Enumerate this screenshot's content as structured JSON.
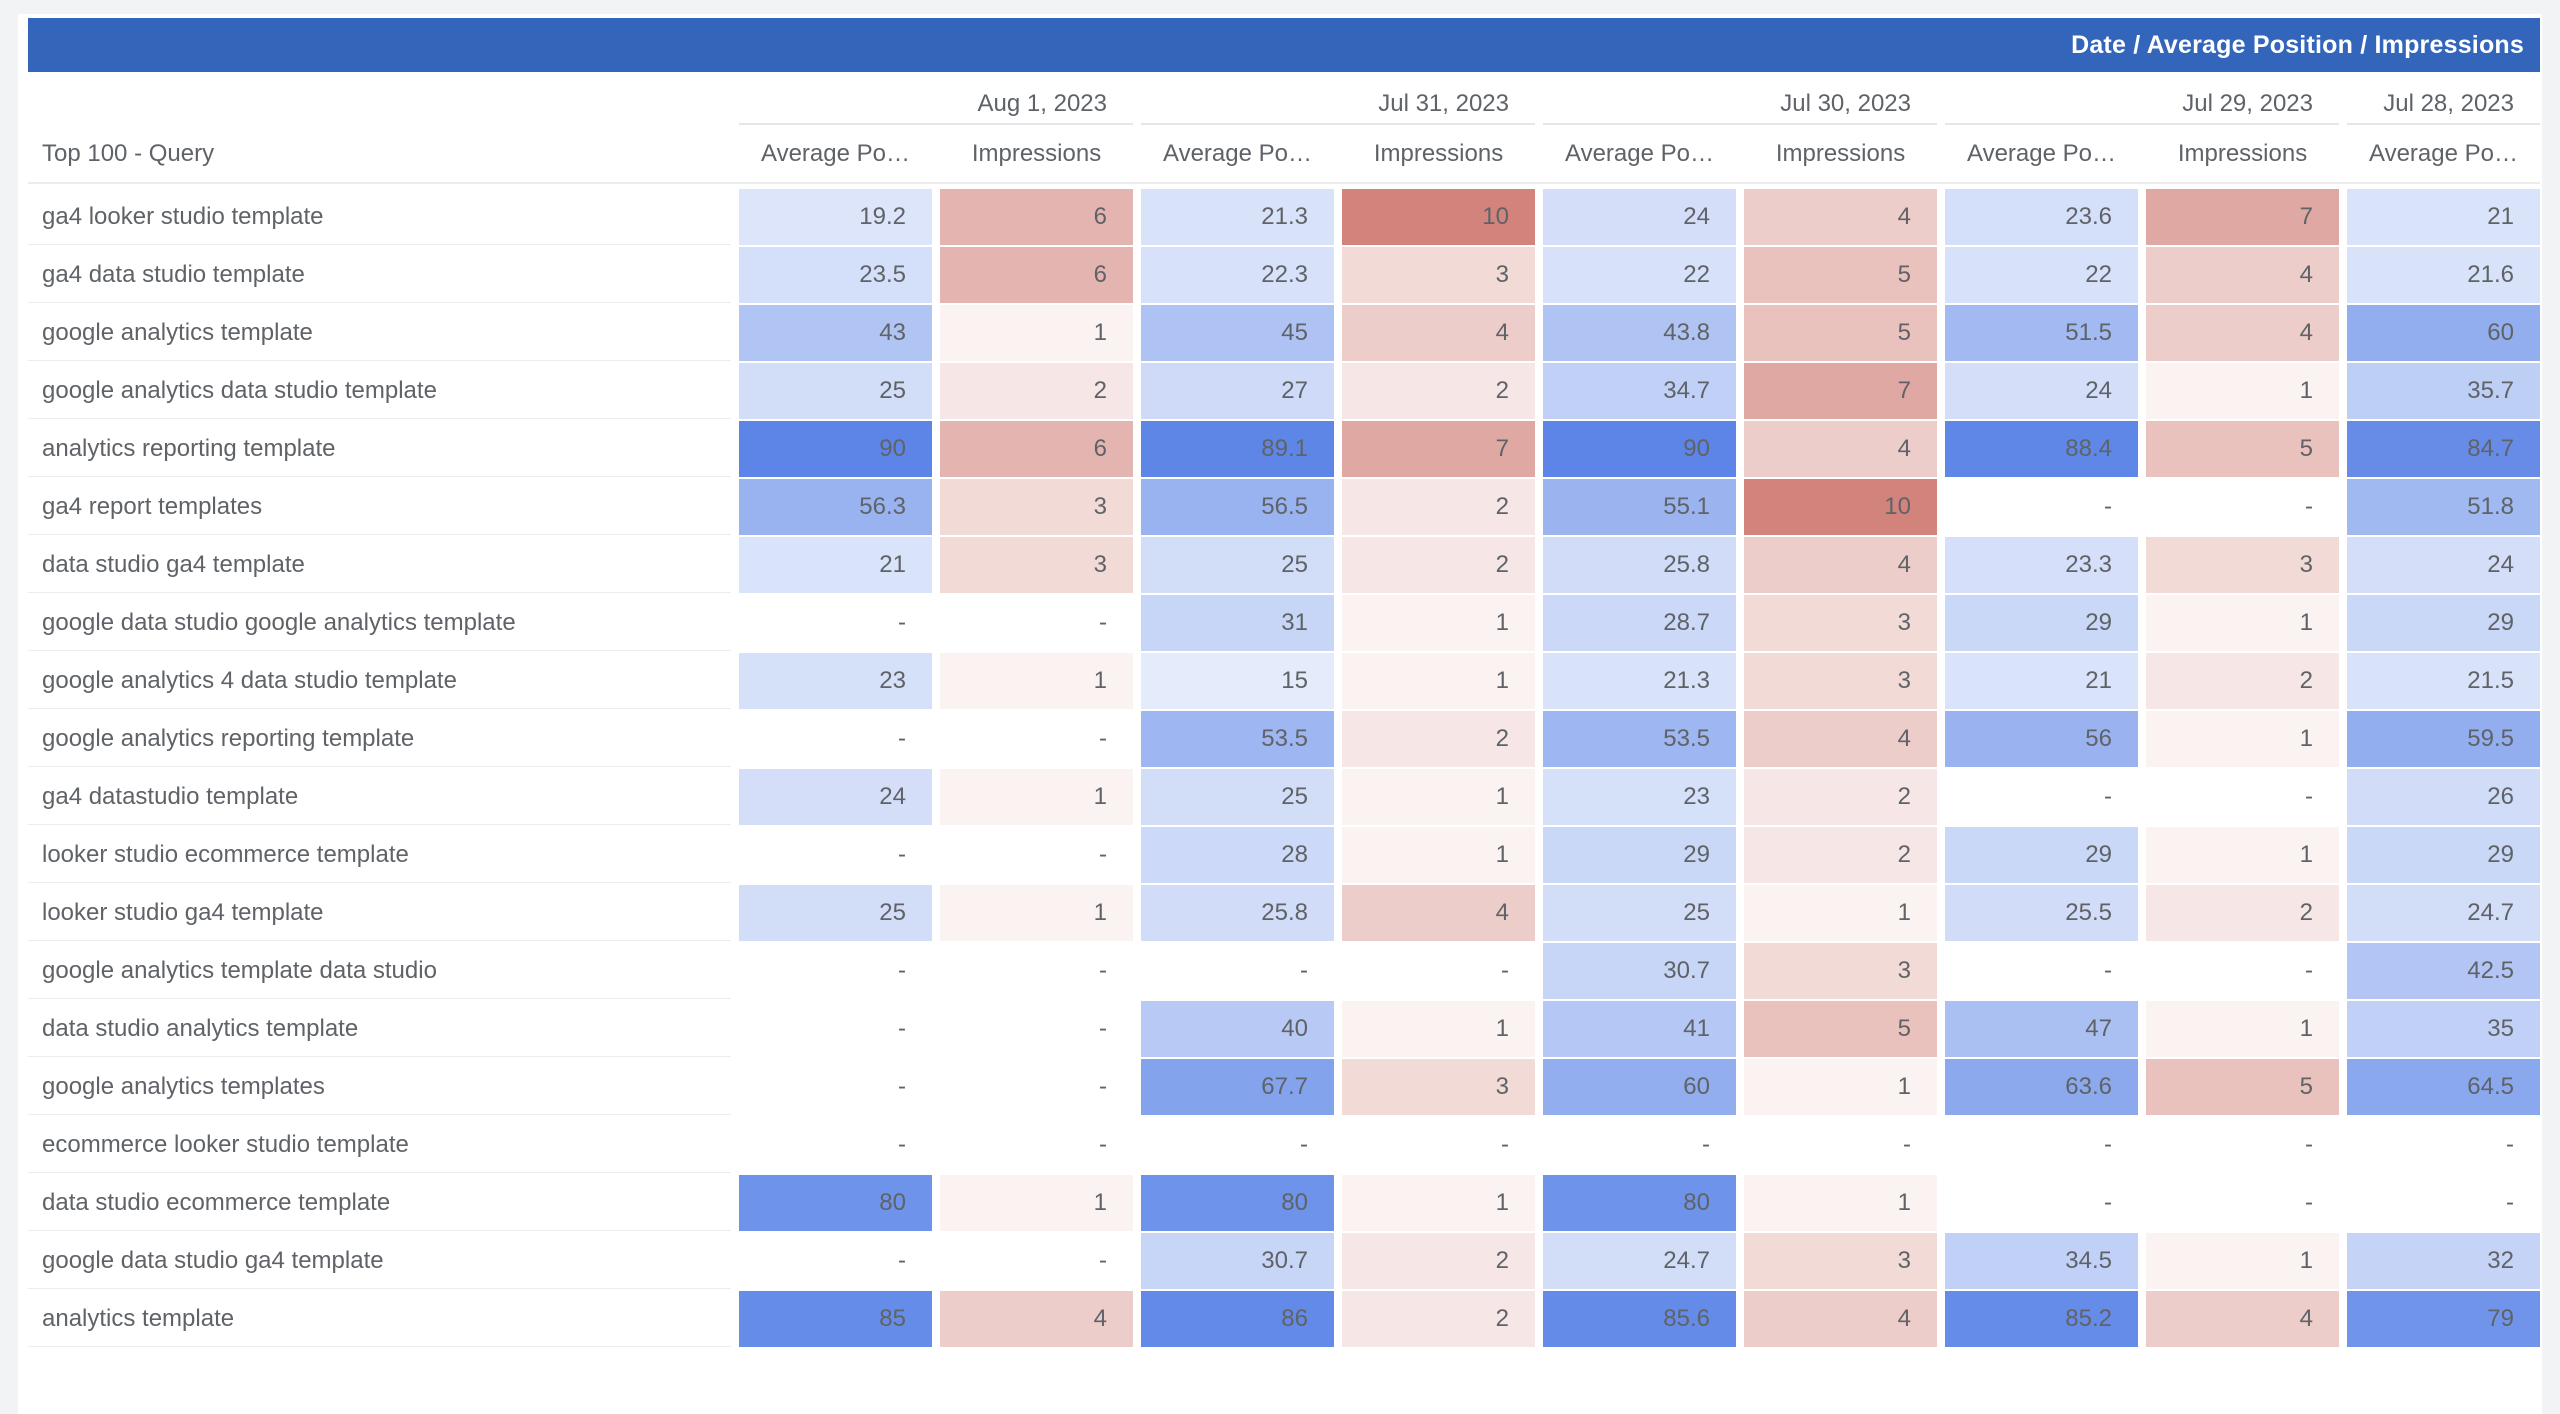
{
  "header_bar": {
    "title": "Date / Average Position / Impressions",
    "background": "#3366bb",
    "text_color": "#ffffff"
  },
  "colors": {
    "page_background": "#f1f3f4",
    "card_background": "#ffffff",
    "header_text": "#5f6368",
    "value_text": "#5f6368",
    "row_separator": "#ececec",
    "avg_position_max_color": "#5c85e7",
    "impressions_max_color": "#d2837b"
  },
  "heatmap": {
    "average_position": {
      "max_value": 90,
      "max_color": "#5c85e7"
    },
    "impressions": {
      "max_value": 10,
      "max_color": "#d2837b"
    }
  },
  "chart_data": {
    "type": "table",
    "title": "Date / Average Position / Impressions",
    "row_dimension": "Top 100 - Query",
    "empty_cell": "-",
    "metric_labels": {
      "average_position": "Average Po…",
      "impressions": "Impressions"
    },
    "date_groups": [
      "Aug 1, 2023",
      "Jul 31, 2023",
      "Jul 30, 2023",
      "Jul 29, 2023",
      "Jul 28, 2023"
    ],
    "columns": [
      {
        "date_index": 0,
        "metric": "average_position"
      },
      {
        "date_index": 0,
        "metric": "impressions"
      },
      {
        "date_index": 1,
        "metric": "average_position"
      },
      {
        "date_index": 1,
        "metric": "impressions"
      },
      {
        "date_index": 2,
        "metric": "average_position"
      },
      {
        "date_index": 2,
        "metric": "impressions"
      },
      {
        "date_index": 3,
        "metric": "average_position"
      },
      {
        "date_index": 3,
        "metric": "impressions"
      },
      {
        "date_index": 4,
        "metric": "average_position"
      }
    ],
    "rows": [
      {
        "query": "ga4 looker studio template",
        "values": [
          19.2,
          6,
          21.3,
          10,
          24,
          4,
          23.6,
          7,
          21
        ]
      },
      {
        "query": "ga4 data studio template",
        "values": [
          23.5,
          6,
          22.3,
          3,
          22,
          5,
          22,
          4,
          21.6
        ]
      },
      {
        "query": "google analytics template",
        "values": [
          43,
          1,
          45,
          4,
          43.8,
          5,
          51.5,
          4,
          60
        ]
      },
      {
        "query": "google analytics data studio template",
        "values": [
          25,
          2,
          27,
          2,
          34.7,
          7,
          24,
          1,
          35.7
        ]
      },
      {
        "query": "analytics reporting template",
        "values": [
          90,
          6,
          89.1,
          7,
          90,
          4,
          88.4,
          5,
          84.7
        ]
      },
      {
        "query": "ga4 report templates",
        "values": [
          56.3,
          3,
          56.5,
          2,
          55.1,
          10,
          null,
          null,
          51.8
        ]
      },
      {
        "query": "data studio ga4 template",
        "values": [
          21,
          3,
          25,
          2,
          25.8,
          4,
          23.3,
          3,
          24
        ]
      },
      {
        "query": "google data studio google analytics template",
        "values": [
          null,
          null,
          31,
          1,
          28.7,
          3,
          29,
          1,
          29
        ]
      },
      {
        "query": "google analytics 4 data studio template",
        "values": [
          23,
          1,
          15,
          1,
          21.3,
          3,
          21,
          2,
          21.5
        ]
      },
      {
        "query": "google analytics reporting template",
        "values": [
          null,
          null,
          53.5,
          2,
          53.5,
          4,
          56,
          1,
          59.5
        ]
      },
      {
        "query": "ga4 datastudio template",
        "values": [
          24,
          1,
          25,
          1,
          23,
          2,
          null,
          null,
          26
        ]
      },
      {
        "query": "looker studio ecommerce template",
        "values": [
          null,
          null,
          28,
          1,
          29,
          2,
          29,
          1,
          29
        ]
      },
      {
        "query": "looker studio ga4 template",
        "values": [
          25,
          1,
          25.8,
          4,
          25,
          1,
          25.5,
          2,
          24.7
        ]
      },
      {
        "query": "google analytics template data studio",
        "values": [
          null,
          null,
          null,
          null,
          30.7,
          3,
          null,
          null,
          42.5
        ]
      },
      {
        "query": "data studio analytics template",
        "values": [
          null,
          null,
          40,
          1,
          41,
          5,
          47,
          1,
          35
        ]
      },
      {
        "query": "google analytics templates",
        "values": [
          null,
          null,
          67.7,
          3,
          60,
          1,
          63.6,
          5,
          64.5
        ]
      },
      {
        "query": "ecommerce looker studio template",
        "values": [
          null,
          null,
          null,
          null,
          null,
          null,
          null,
          null,
          null
        ]
      },
      {
        "query": "data studio ecommerce template",
        "values": [
          80,
          1,
          80,
          1,
          80,
          1,
          null,
          null,
          null
        ]
      },
      {
        "query": "google data studio ga4 template",
        "values": [
          null,
          null,
          30.7,
          2,
          24.7,
          3,
          34.5,
          1,
          32
        ]
      },
      {
        "query": "analytics template",
        "values": [
          85,
          4,
          86,
          2,
          85.6,
          4,
          85.2,
          4,
          79
        ]
      }
    ]
  }
}
